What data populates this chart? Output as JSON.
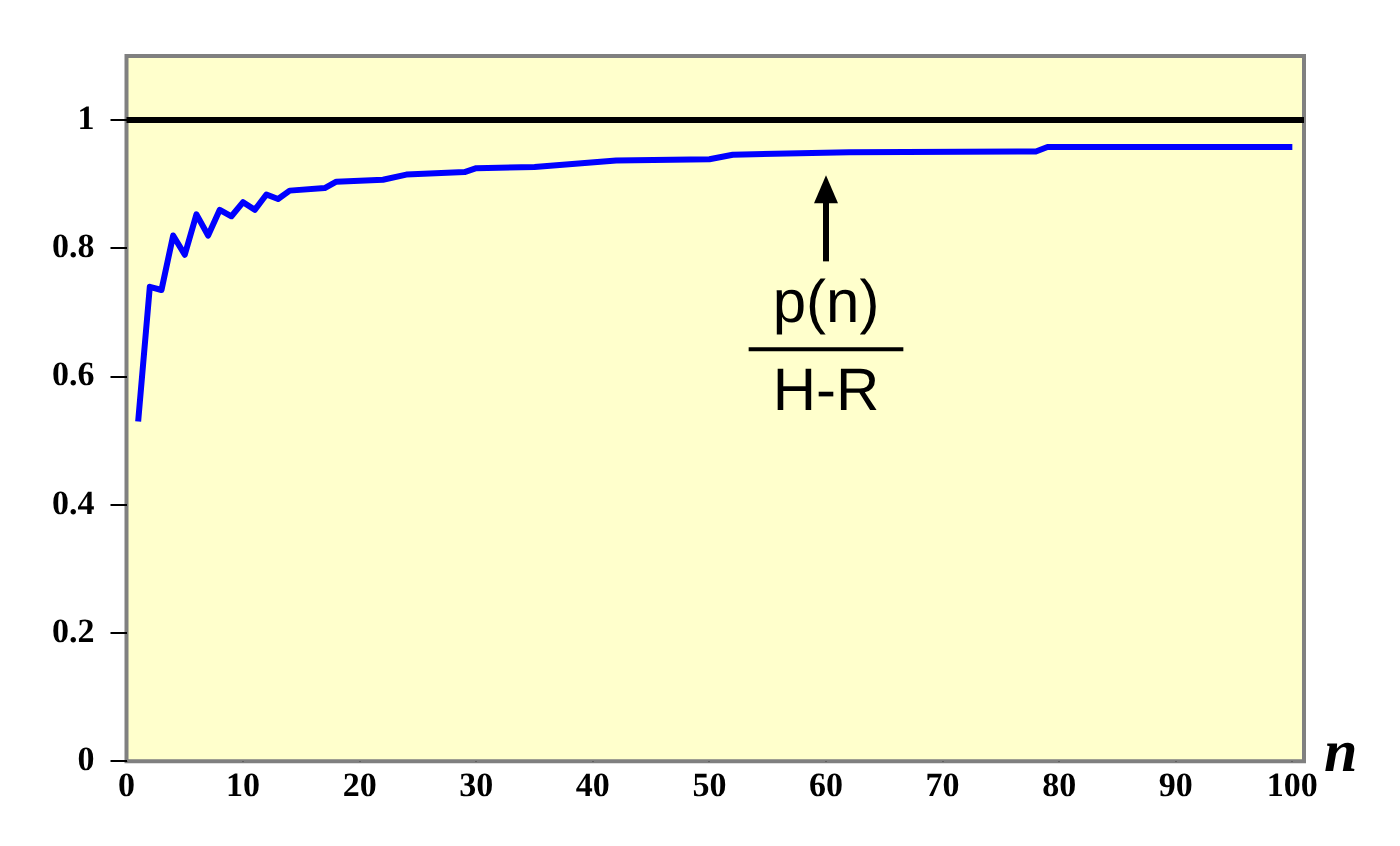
{
  "chart_data": {
    "type": "line",
    "xlabel": "n",
    "x": [
      1,
      2,
      3,
      4,
      5,
      6,
      7,
      8,
      9,
      10,
      11,
      12,
      13,
      14,
      17,
      18,
      22,
      24,
      29,
      30,
      35,
      42,
      50,
      52,
      62,
      78,
      79,
      100
    ],
    "series": [
      {
        "color": "#0000ff",
        "values": [
          0.53,
          0.74,
          0.735,
          0.82,
          0.79,
          0.853,
          0.82,
          0.86,
          0.85,
          0.872,
          0.86,
          0.884,
          0.877,
          0.89,
          0.894,
          0.904,
          0.907,
          0.915,
          0.919,
          0.925,
          0.927,
          0.937,
          0.939,
          0.946,
          0.95,
          0.951,
          0.958,
          0.958
        ]
      }
    ],
    "xlim": [
      0,
      101
    ],
    "xticks": [
      0,
      10,
      20,
      30,
      40,
      50,
      60,
      70,
      80,
      90,
      100
    ],
    "ylim": [
      0,
      1.1
    ],
    "yticks": [
      0,
      0.2,
      0.4,
      0.6,
      0.8,
      1
    ],
    "ref_lines": [
      {
        "axis": "y",
        "value": 1,
        "color": "#000000"
      }
    ],
    "annotations": [
      {
        "text": "p(n)",
        "x": 60,
        "y": 0.945
      },
      "H-R"
    ],
    "grid": false,
    "legend": false,
    "marker": "none",
    "line_style": "solid"
  }
}
